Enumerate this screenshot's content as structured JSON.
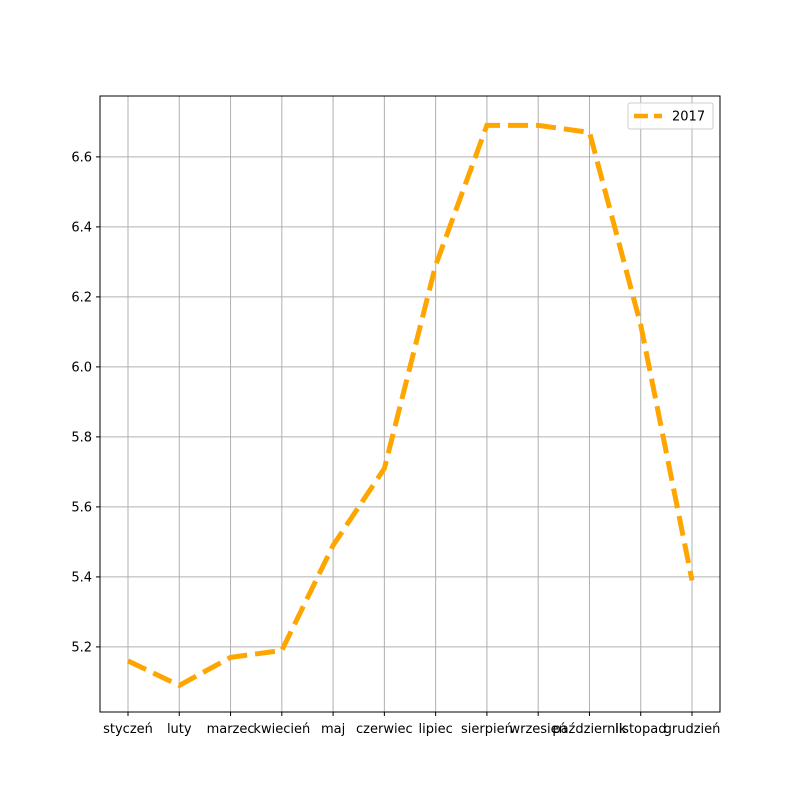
{
  "chart_data": {
    "type": "line",
    "title": "",
    "xlabel": "",
    "ylabel": "",
    "categories": [
      "styczeń",
      "luty",
      "marzec",
      "kwiecień",
      "maj",
      "czerwiec",
      "lipiec",
      "sierpień",
      "wrzesień",
      "październik",
      "listopad",
      "grudzień"
    ],
    "series": [
      {
        "name": "2017",
        "color": "#ffa500",
        "line_style": "dashed",
        "values": [
          5.16,
          5.09,
          5.17,
          5.19,
          5.49,
          5.71,
          6.29,
          6.69,
          6.69,
          6.67,
          6.12,
          5.39
        ]
      }
    ],
    "ylim": [
      5.014,
      6.774
    ],
    "yticks": [
      5.2,
      5.4,
      5.6,
      5.8,
      6.0,
      6.2,
      6.4,
      6.6
    ],
    "ytick_labels": [
      "5.2",
      "5.4",
      "5.6",
      "5.8",
      "6.0",
      "6.2",
      "6.4",
      "6.6"
    ],
    "grid": true,
    "grid_color": "#b0b0b0",
    "legend_position": "top-right"
  }
}
